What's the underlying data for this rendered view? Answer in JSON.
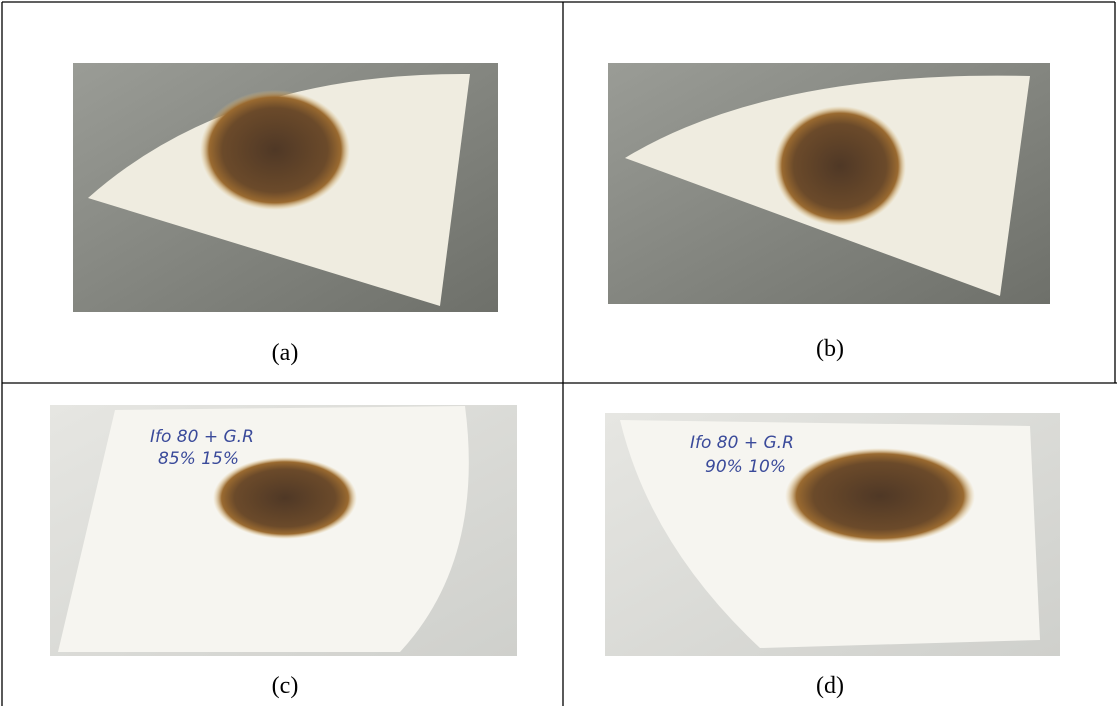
{
  "figure": {
    "panels": [
      {
        "caption": "(a)"
      },
      {
        "caption": "(b)"
      },
      {
        "caption": "(c)",
        "handwriting": [
          "Ifo 80 + G.R",
          "85%     15%"
        ]
      },
      {
        "caption": "(d)",
        "handwriting": [
          "Ifo 80 + G.R",
          "90%   10%"
        ]
      }
    ]
  }
}
